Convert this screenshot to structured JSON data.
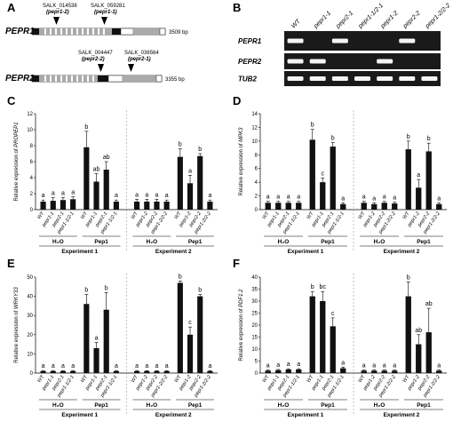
{
  "panel_labels": {
    "A": "A",
    "B": "B",
    "C": "C",
    "D": "D",
    "E": "E",
    "F": "F"
  },
  "panel_a": {
    "pepr1": {
      "gene": "PEPR1",
      "length": "3509 bp",
      "insertions": [
        {
          "id": "SALK_014538",
          "allele": "(pepr1-2)"
        },
        {
          "id": "SALK_059281",
          "allele": "(pepr1-1)"
        }
      ]
    },
    "pepr2": {
      "gene": "PEPR2",
      "length": "3355 bp",
      "insertions": [
        {
          "id": "SALK_004447",
          "allele": "(pepr2-2)"
        },
        {
          "id": "SALK_036564",
          "allele": "(pepr2-1)"
        }
      ]
    }
  },
  "panel_b": {
    "lanes": [
      "WT",
      "pepr1-1",
      "pepr2-1",
      "pepr1-1/2-1",
      "pepr1-2",
      "pepr2-2",
      "pepr1-2/2-2"
    ],
    "rows": [
      {
        "gene": "PEPR1",
        "bands": [
          1,
          0,
          1,
          0,
          0,
          1,
          0
        ]
      },
      {
        "gene": "PEPR2",
        "bands": [
          1,
          1,
          0,
          0,
          1,
          0,
          0
        ]
      },
      {
        "gene": "TUB2",
        "bands": [
          1,
          1,
          1,
          1,
          1,
          1,
          1
        ]
      }
    ]
  },
  "chart_data": [
    {
      "panel": "C",
      "type": "bar",
      "ylabel": "Relative expression of",
      "ylabel_gene": "PROPEP1",
      "ylim": [
        0,
        12
      ],
      "yticks": [
        0,
        2,
        4,
        6,
        8,
        10,
        12
      ],
      "categories": [
        "WT",
        "pepr1-1",
        "pepr2-1",
        "pepr1-1/2-1",
        "WT",
        "pepr1-1",
        "pepr2-1",
        "pepr1-1/2-1",
        "WT",
        "pepr1-2",
        "pepr2-2",
        "pepr1-2/2-2",
        "WT",
        "pepr1-2",
        "pepr2-2",
        "pepr1-2/2-2"
      ],
      "values": [
        1.0,
        1.1,
        1.2,
        1.3,
        7.8,
        3.5,
        5.0,
        1.0,
        1.0,
        1.0,
        1.0,
        1.0,
        6.6,
        3.3,
        6.7,
        1.0
      ],
      "errors": [
        0.2,
        0.4,
        0.3,
        0.3,
        2.0,
        1.0,
        1.0,
        0.2,
        0.3,
        0.3,
        0.3,
        0.2,
        1.0,
        1.0,
        0.3,
        0.2
      ],
      "significance": [
        "a",
        "a",
        "a",
        "a",
        "b",
        "ab",
        "ab",
        "a",
        "a",
        "a",
        "a",
        "a",
        "b",
        "a",
        "b",
        "a"
      ],
      "treatments": [
        "H₂O",
        "Pep1",
        "H₂O",
        "Pep1"
      ],
      "experiments": [
        "Experiment 1",
        "Experiment 2"
      ]
    },
    {
      "panel": "D",
      "type": "bar",
      "ylabel": "Relative expression of",
      "ylabel_gene": "MPK3",
      "ylim": [
        0,
        14
      ],
      "yticks": [
        0,
        2,
        4,
        6,
        8,
        10,
        12,
        14
      ],
      "categories": [
        "WT",
        "pepr1-1",
        "pepr2-1",
        "pepr1-1/2-1",
        "WT",
        "pepr1-1",
        "pepr2-1",
        "pepr1-1/2-1",
        "WT",
        "pepr1-2",
        "pepr2-2",
        "pepr1-2/2-2",
        "WT",
        "pepr1-2",
        "pepr2-2",
        "pepr1-2/2-2"
      ],
      "values": [
        1.0,
        1.0,
        1.0,
        1.0,
        10.2,
        4.0,
        9.2,
        0.8,
        1.0,
        0.8,
        1.0,
        0.9,
        8.8,
        3.2,
        8.5,
        0.8
      ],
      "errors": [
        0.2,
        0.2,
        0.2,
        0.2,
        1.5,
        0.6,
        0.6,
        0.2,
        0.2,
        0.2,
        0.2,
        0.2,
        1.2,
        1.2,
        1.2,
        0.2
      ],
      "significance": [
        "a",
        "a",
        "a",
        "a",
        "b",
        "c",
        "b",
        "a",
        "a",
        "a",
        "a",
        "a",
        "b",
        "a",
        "b",
        "a"
      ],
      "treatments": [
        "H₂O",
        "Pep1",
        "H₂O",
        "Pep1"
      ],
      "experiments": [
        "Experiment 1",
        "Experiment 2"
      ]
    },
    {
      "panel": "E",
      "type": "bar",
      "ylabel": "Relative expression of",
      "ylabel_gene": "WRKY33",
      "ylim": [
        0,
        50
      ],
      "yticks": [
        0,
        10,
        20,
        30,
        40,
        50
      ],
      "categories": [
        "WT",
        "pepr1-1",
        "pepr2-1",
        "pepr1-1/2-1",
        "WT",
        "pepr1-1",
        "pepr2-1",
        "pepr1-1/2-1",
        "WT",
        "pepr1-2",
        "pepr2-2",
        "pepr1-2/2-2",
        "WT",
        "pepr1-2",
        "pepr2-2",
        "pepr1-2/2-2"
      ],
      "values": [
        1,
        1,
        1,
        1,
        36,
        13,
        33,
        1,
        1,
        1,
        1,
        1,
        47,
        20,
        40,
        1
      ],
      "errors": [
        0.3,
        0.3,
        0.3,
        0.3,
        5,
        3,
        9,
        0.3,
        0.3,
        0.3,
        0.3,
        0.3,
        1,
        4,
        1,
        0.3
      ],
      "significance": [
        "a",
        "a",
        "a",
        "a",
        "b",
        "a",
        "b",
        "a",
        "a",
        "a",
        "a",
        "a",
        "b",
        "c",
        "b",
        "a"
      ],
      "treatments": [
        "H₂O",
        "Pep1",
        "H₂O",
        "Pep1"
      ],
      "experiments": [
        "Experiment 1",
        "Experiment 2"
      ]
    },
    {
      "panel": "F",
      "type": "bar",
      "ylabel": "Relative expression of",
      "ylabel_gene": "PDF1.2",
      "ylim": [
        0,
        40
      ],
      "yticks": [
        0,
        5,
        10,
        15,
        20,
        25,
        30,
        35,
        40
      ],
      "categories": [
        "WT",
        "pepr1-1",
        "pepr2-1",
        "pepr1-1/2-1",
        "WT",
        "pepr1-1",
        "pepr2-1",
        "pepr1-1/2-1",
        "WT",
        "pepr1-2",
        "pepr2-2",
        "pepr1-2/2-2",
        "WT",
        "pepr1-2",
        "pepr2-2",
        "pepr1-2/2-2"
      ],
      "values": [
        1.0,
        1.2,
        1.5,
        1.5,
        32,
        30,
        19.5,
        2.0,
        1.0,
        1.0,
        1.0,
        1.0,
        32,
        12,
        17,
        1.0
      ],
      "errors": [
        0.3,
        0.3,
        0.3,
        0.3,
        2,
        4,
        3.5,
        0.5,
        0.3,
        0.3,
        0.3,
        0.3,
        6,
        4,
        10,
        0.3
      ],
      "significance": [
        "a",
        "a",
        "a",
        "a",
        "b",
        "bc",
        "c",
        "a",
        "a",
        "a",
        "a",
        "a",
        "b",
        "ab",
        "ab",
        "a"
      ],
      "treatments": [
        "H₂O",
        "Pep1",
        "H₂O",
        "Pep1"
      ],
      "experiments": [
        "Experiment 1",
        "Experiment 2"
      ]
    }
  ]
}
